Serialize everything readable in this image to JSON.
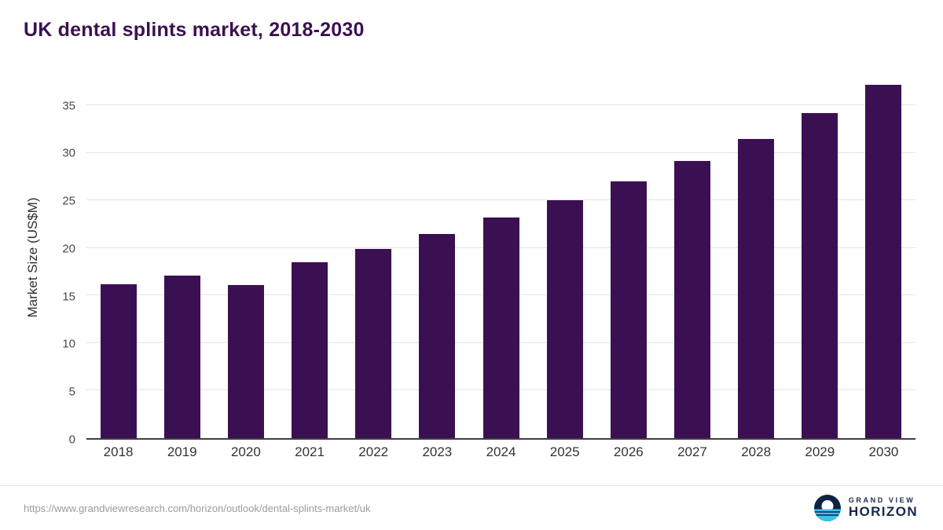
{
  "title": "UK dental splints market, 2018-2030",
  "chart_data": {
    "type": "bar",
    "title": "UK dental splints market, 2018-2030",
    "categories": [
      "2018",
      "2019",
      "2020",
      "2021",
      "2022",
      "2023",
      "2024",
      "2025",
      "2026",
      "2027",
      "2028",
      "2029",
      "2030"
    ],
    "values": [
      16.2,
      17.1,
      16.1,
      18.5,
      19.9,
      21.5,
      23.2,
      25.0,
      27.0,
      29.2,
      31.5,
      34.2,
      37.2
    ],
    "xlabel": "",
    "ylabel": "Market Size (US$M)",
    "ylim": [
      0,
      38.5
    ],
    "yticks": [
      0,
      5,
      10,
      15,
      20,
      25,
      30,
      35
    ],
    "bar_color": "#3b1053",
    "grid": true,
    "legend_position": "none"
  },
  "colors": {
    "bar": "#3b1053",
    "title": "#3b1053",
    "gridline": "#e4e4e4",
    "axis": "#3f3f3f",
    "logo_navy": "#15294b",
    "logo_cyan": "#3ec1ee"
  },
  "footer": {
    "source_url": "https://www.grandviewresearch.com/horizon/outlook/dental-splints-market/uk",
    "logo_text_top": "GRAND VIEW",
    "logo_text_bottom": "HORIZON"
  }
}
